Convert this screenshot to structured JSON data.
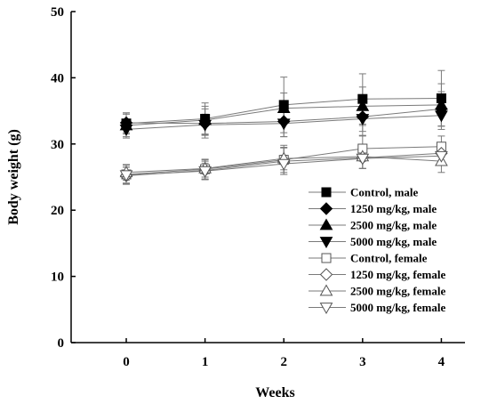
{
  "chart_data": {
    "type": "line",
    "title": "",
    "xlabel": "Weeks",
    "ylabel": "Body weight (g)",
    "x": [
      0,
      1,
      2,
      3,
      4
    ],
    "xlim": [
      -0.7,
      4.3
    ],
    "ylim": [
      0,
      50
    ],
    "x_ticks": [
      0,
      1,
      2,
      3,
      4
    ],
    "y_ticks": [
      0,
      10,
      20,
      30,
      40,
      50
    ],
    "grid": false,
    "legend_position": "right-lower",
    "line_color": "#7a7a7a",
    "marker_color": "#000000",
    "series": [
      {
        "name": "Control, male",
        "marker": "square-filled",
        "values": [
          33.1,
          33.8,
          35.9,
          36.8,
          36.9
        ],
        "errors": [
          1.6,
          2.4,
          4.2,
          3.8,
          4.2
        ]
      },
      {
        "name": "1250 mg/kg, male",
        "marker": "diamond-filled",
        "values": [
          33.2,
          33.1,
          33.4,
          34.1,
          35.3
        ],
        "errors": [
          1.5,
          2.2,
          2.3,
          2.8,
          2.6
        ]
      },
      {
        "name": "2500 mg/kg, male",
        "marker": "triangle-up-filled",
        "values": [
          32.8,
          33.6,
          35.4,
          35.7,
          35.9
        ],
        "errors": [
          1.7,
          2.1,
          2.3,
          2.9,
          3.2
        ]
      },
      {
        "name": "5000 mg/kg, male",
        "marker": "triangle-down-filled",
        "values": [
          32.2,
          32.9,
          33.1,
          33.8,
          34.3
        ],
        "errors": [
          1.3,
          1.6,
          2.0,
          1.9,
          2.1
        ]
      },
      {
        "name": "Control, female",
        "marker": "square-open",
        "values": [
          25.4,
          26.2,
          27.6,
          29.3,
          29.6
        ],
        "errors": [
          1.4,
          1.5,
          2.2,
          1.9,
          1.6
        ]
      },
      {
        "name": "1250 mg/kg, female",
        "marker": "diamond-open",
        "values": [
          25.2,
          26.0,
          27.4,
          27.9,
          28.6
        ],
        "errors": [
          1.3,
          1.4,
          2.0,
          1.6,
          1.5
        ]
      },
      {
        "name": "2500 mg/kg, female",
        "marker": "triangle-up-open",
        "values": [
          25.7,
          26.3,
          27.8,
          28.1,
          27.4
        ],
        "errors": [
          1.2,
          1.3,
          1.7,
          1.8,
          1.7
        ]
      },
      {
        "name": "5000 mg/kg, female",
        "marker": "triangle-down-open",
        "values": [
          25.3,
          25.9,
          27.0,
          27.8,
          28.2
        ],
        "errors": [
          1.2,
          1.2,
          1.3,
          1.5,
          1.4
        ]
      }
    ]
  }
}
